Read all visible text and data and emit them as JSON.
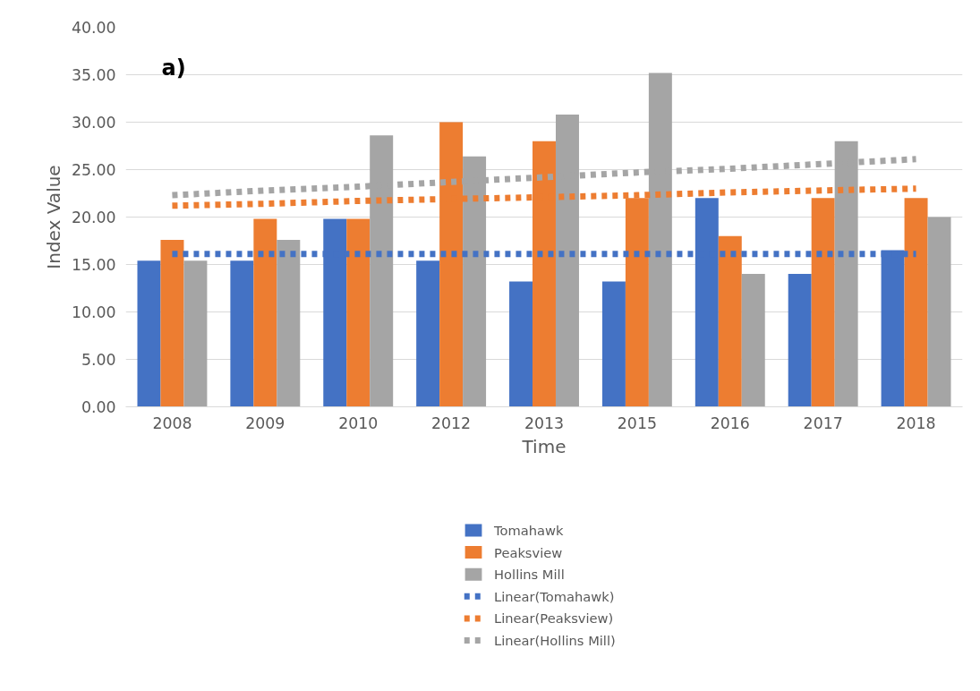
{
  "chart_data": {
    "type": "bar",
    "title": "a)",
    "xlabel": "Time",
    "ylabel": "Index Value",
    "categories": [
      "2008",
      "2009",
      "2010",
      "2012",
      "2013",
      "2015",
      "2016",
      "2017",
      "2018"
    ],
    "series": [
      {
        "name": "Tomahawk",
        "color": "#4472c4",
        "values": [
          15.4,
          15.4,
          19.8,
          15.4,
          13.2,
          13.2,
          22.0,
          14.0,
          16.5
        ]
      },
      {
        "name": "Peaksview",
        "color": "#ed7d31",
        "values": [
          17.6,
          19.8,
          19.8,
          30.0,
          28.0,
          22.0,
          18.0,
          22.0,
          22.0
        ]
      },
      {
        "name": "Hollins Mill",
        "color": "#a5a5a5",
        "values": [
          15.4,
          17.6,
          28.6,
          26.4,
          30.8,
          35.2,
          14.0,
          28.0,
          20.0
        ]
      },
      {
        "name": "Linear(Tomahawk)",
        "type": "line",
        "line_style": "dotted",
        "color": "#4472c4",
        "values": [
          16.1,
          16.1,
          16.1,
          16.1,
          16.1,
          16.1,
          16.1,
          16.1,
          16.1
        ]
      },
      {
        "name": "Linear(Peaksview)",
        "type": "line",
        "line_style": "dotted",
        "color": "#ed7d31",
        "values": [
          21.2,
          21.4,
          21.7,
          21.9,
          22.1,
          22.3,
          22.6,
          22.8,
          23.0
        ]
      },
      {
        "name": "Linear(Hollins Mill)",
        "type": "line",
        "line_style": "dotted",
        "color": "#a5a5a5",
        "values": [
          22.3,
          22.8,
          23.2,
          23.7,
          24.2,
          24.7,
          25.1,
          25.6,
          26.1
        ]
      }
    ],
    "ylim": [
      0,
      40
    ],
    "yticks": [
      {
        "value": 0,
        "label": "0.00"
      },
      {
        "value": 5,
        "label": "5.00"
      },
      {
        "value": 10,
        "label": "10.00"
      },
      {
        "value": 15,
        "label": "15.00"
      },
      {
        "value": 20,
        "label": "20.00"
      },
      {
        "value": 25,
        "label": "25.00"
      },
      {
        "value": 30,
        "label": "30.00"
      },
      {
        "value": 35,
        "label": "35.00"
      },
      {
        "value": 40,
        "label": "40.00"
      }
    ],
    "grid": "y",
    "legend": "bottom"
  }
}
